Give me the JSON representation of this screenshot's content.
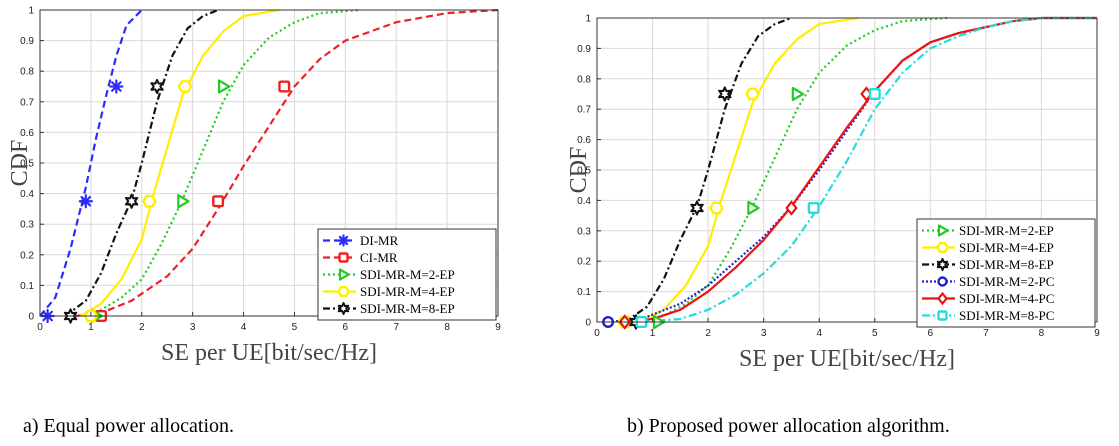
{
  "chart_data": [
    {
      "type": "line",
      "title": "",
      "xlabel": "SE per UE[bit/sec/Hz]",
      "ylabel": "CDF",
      "xlim": [
        0,
        9
      ],
      "ylim": [
        0,
        1
      ],
      "xticks": [
        "0",
        "1",
        "2",
        "3",
        "4",
        "5",
        "6",
        "7",
        "8",
        "9"
      ],
      "yticks": [
        "0",
        "0.1",
        "0.2",
        "0.3",
        "0.4",
        "0.5",
        "0.6",
        "0.7",
        "0.8",
        "0.9",
        "1"
      ],
      "grid": true,
      "legend_position": "bottom-right",
      "caption": "a)    Equal power allocation.",
      "series": [
        {
          "name": "DI-MR",
          "color": "#2b2bff",
          "dash": "7,4",
          "marker": "asterisk",
          "x": [
            0,
            0.3,
            0.6,
            0.9,
            1.1,
            1.3,
            1.5,
            1.7,
            2.0
          ],
          "y": [
            0,
            0.06,
            0.22,
            0.42,
            0.58,
            0.72,
            0.85,
            0.95,
            1
          ],
          "marker_points": [
            [
              0.15,
              0
            ],
            [
              0.9,
              0.375
            ],
            [
              1.5,
              0.75
            ]
          ]
        },
        {
          "name": "CI-MR",
          "color": "#ee2222",
          "dash": "7,4",
          "marker": "square",
          "x": [
            0.7,
            1.2,
            1.8,
            2.5,
            3.0,
            3.5,
            4.0,
            4.5,
            5.0,
            5.5,
            6.0,
            7.0,
            8.0,
            9.0
          ],
          "y": [
            0,
            0.01,
            0.05,
            0.13,
            0.22,
            0.35,
            0.49,
            0.62,
            0.75,
            0.84,
            0.9,
            0.96,
            0.99,
            1
          ],
          "marker_points": [
            [
              1.2,
              0
            ],
            [
              3.5,
              0.375
            ],
            [
              4.8,
              0.75
            ]
          ]
        },
        {
          "name": "SDI-MR-M=2-EP",
          "color": "#22cc22",
          "dash": "2,3",
          "marker": "triangle-right",
          "x": [
            0.8,
            1.2,
            1.6,
            2.0,
            2.4,
            2.8,
            3.2,
            3.6,
            4.0,
            4.5,
            5.0,
            5.5,
            6.3
          ],
          "y": [
            0,
            0.02,
            0.06,
            0.12,
            0.24,
            0.38,
            0.54,
            0.7,
            0.82,
            0.91,
            0.96,
            0.99,
            1
          ],
          "marker_points": [
            [
              1.1,
              0
            ],
            [
              2.8,
              0.375
            ],
            [
              3.6,
              0.75
            ]
          ]
        },
        {
          "name": "SDI-MR-M=4-EP",
          "color": "#ffee00",
          "dash": "",
          "marker": "hexagon",
          "x": [
            0.8,
            1.2,
            1.6,
            2.0,
            2.2,
            2.5,
            2.8,
            3.2,
            3.6,
            4.0,
            4.7
          ],
          "y": [
            0,
            0.04,
            0.12,
            0.25,
            0.38,
            0.55,
            0.72,
            0.85,
            0.93,
            0.98,
            1
          ],
          "marker_points": [
            [
              1.0,
              0
            ],
            [
              2.15,
              0.375
            ],
            [
              2.85,
              0.75
            ]
          ]
        },
        {
          "name": "SDI-MR-M=8-EP",
          "color": "#111111",
          "dash": "7,3,2,3",
          "marker": "hexagram",
          "x": [
            0.5,
            0.9,
            1.2,
            1.5,
            1.8,
            2.0,
            2.3,
            2.6,
            2.9,
            3.2,
            3.5
          ],
          "y": [
            0,
            0.05,
            0.14,
            0.27,
            0.38,
            0.5,
            0.7,
            0.85,
            0.94,
            0.98,
            1
          ],
          "marker_points": [
            [
              0.6,
              0
            ],
            [
              1.8,
              0.375
            ],
            [
              2.3,
              0.75
            ]
          ]
        }
      ]
    },
    {
      "type": "line",
      "title": "",
      "xlabel": "SE per UE[bit/sec/Hz]",
      "ylabel": "CDF",
      "xlim": [
        0,
        9
      ],
      "ylim": [
        0,
        1
      ],
      "xticks": [
        "0",
        "1",
        "2",
        "3",
        "4",
        "5",
        "6",
        "7",
        "8",
        "9"
      ],
      "yticks": [
        "0",
        "0.1",
        "0.2",
        "0.3",
        "0.4",
        "0.5",
        "0.6",
        "0.7",
        "0.8",
        "0.9",
        "1"
      ],
      "grid": true,
      "legend_position": "bottom-right",
      "caption": "b) Proposed power allocation algorithm.",
      "series": [
        {
          "name": "SDI-MR-M=2-EP",
          "color": "#22cc22",
          "dash": "2,3",
          "marker": "triangle-right",
          "x": [
            0.8,
            1.2,
            1.6,
            2.0,
            2.4,
            2.8,
            3.2,
            3.6,
            4.0,
            4.5,
            5.0,
            5.5,
            6.3
          ],
          "y": [
            0,
            0.02,
            0.06,
            0.12,
            0.24,
            0.38,
            0.54,
            0.7,
            0.82,
            0.91,
            0.96,
            0.99,
            1
          ],
          "marker_points": [
            [
              1.1,
              0
            ],
            [
              2.8,
              0.375
            ],
            [
              3.6,
              0.75
            ]
          ]
        },
        {
          "name": "SDI-MR-M=4-EP",
          "color": "#ffee00",
          "dash": "",
          "marker": "hexagon",
          "x": [
            0.8,
            1.2,
            1.6,
            2.0,
            2.2,
            2.5,
            2.8,
            3.2,
            3.6,
            4.0,
            4.7
          ],
          "y": [
            0,
            0.04,
            0.12,
            0.25,
            0.38,
            0.55,
            0.72,
            0.85,
            0.93,
            0.98,
            1
          ],
          "marker_points": [
            [
              0.5,
              0
            ],
            [
              2.15,
              0.375
            ],
            [
              2.8,
              0.75
            ]
          ]
        },
        {
          "name": "SDI-MR-M=8-EP",
          "color": "#111111",
          "dash": "7,3,2,3",
          "marker": "hexagram",
          "x": [
            0.5,
            0.9,
            1.2,
            1.5,
            1.8,
            2.0,
            2.3,
            2.6,
            2.9,
            3.2,
            3.5
          ],
          "y": [
            0,
            0.05,
            0.14,
            0.27,
            0.38,
            0.5,
            0.7,
            0.85,
            0.94,
            0.98,
            1
          ],
          "marker_points": [
            [
              0.7,
              0
            ],
            [
              1.8,
              0.375
            ],
            [
              2.3,
              0.75
            ]
          ]
        },
        {
          "name": "SDI-MR-M=2-PC",
          "color": "#2222cc",
          "dash": "2,2",
          "marker": "circle",
          "x": [
            0.2,
            0.8,
            1.5,
            2.0,
            2.5,
            3.0,
            3.5,
            4.0,
            4.5,
            5.0,
            5.5,
            6.0,
            6.5,
            7.0,
            7.5,
            8.0,
            9.0
          ],
          "y": [
            0,
            0.01,
            0.06,
            0.12,
            0.2,
            0.28,
            0.38,
            0.5,
            0.63,
            0.76,
            0.86,
            0.92,
            0.95,
            0.97,
            0.99,
            1,
            1
          ],
          "marker_points": [
            [
              0.2,
              0
            ]
          ]
        },
        {
          "name": "SDI-MR-M=4-PC",
          "color": "#ee1111",
          "dash": "",
          "marker": "diamond",
          "x": [
            0.5,
            1.0,
            1.5,
            2.0,
            2.5,
            3.0,
            3.5,
            4.0,
            4.5,
            5.0,
            5.5,
            6.0,
            6.5,
            7.0,
            7.5,
            8.0,
            9.0
          ],
          "y": [
            0,
            0.01,
            0.04,
            0.1,
            0.18,
            0.27,
            0.38,
            0.51,
            0.64,
            0.76,
            0.86,
            0.92,
            0.95,
            0.97,
            0.99,
            1,
            1
          ],
          "marker_points": [
            [
              0.5,
              0
            ],
            [
              3.5,
              0.375
            ],
            [
              4.85,
              0.75
            ]
          ]
        },
        {
          "name": "SDI-MR-M=8-PC",
          "color": "#22dddd",
          "dash": "8,3,2,3",
          "marker": "square",
          "x": [
            0.8,
            1.5,
            2.0,
            2.5,
            3.0,
            3.5,
            4.0,
            4.5,
            5.0,
            5.5,
            6.0,
            6.5,
            7.0,
            7.5,
            8.0,
            9.0
          ],
          "y": [
            0,
            0.01,
            0.04,
            0.09,
            0.16,
            0.25,
            0.38,
            0.53,
            0.7,
            0.82,
            0.9,
            0.94,
            0.97,
            0.99,
            1,
            1
          ],
          "marker_points": [
            [
              0.8,
              0
            ],
            [
              3.9,
              0.375
            ],
            [
              5.0,
              0.75
            ]
          ]
        }
      ]
    }
  ]
}
